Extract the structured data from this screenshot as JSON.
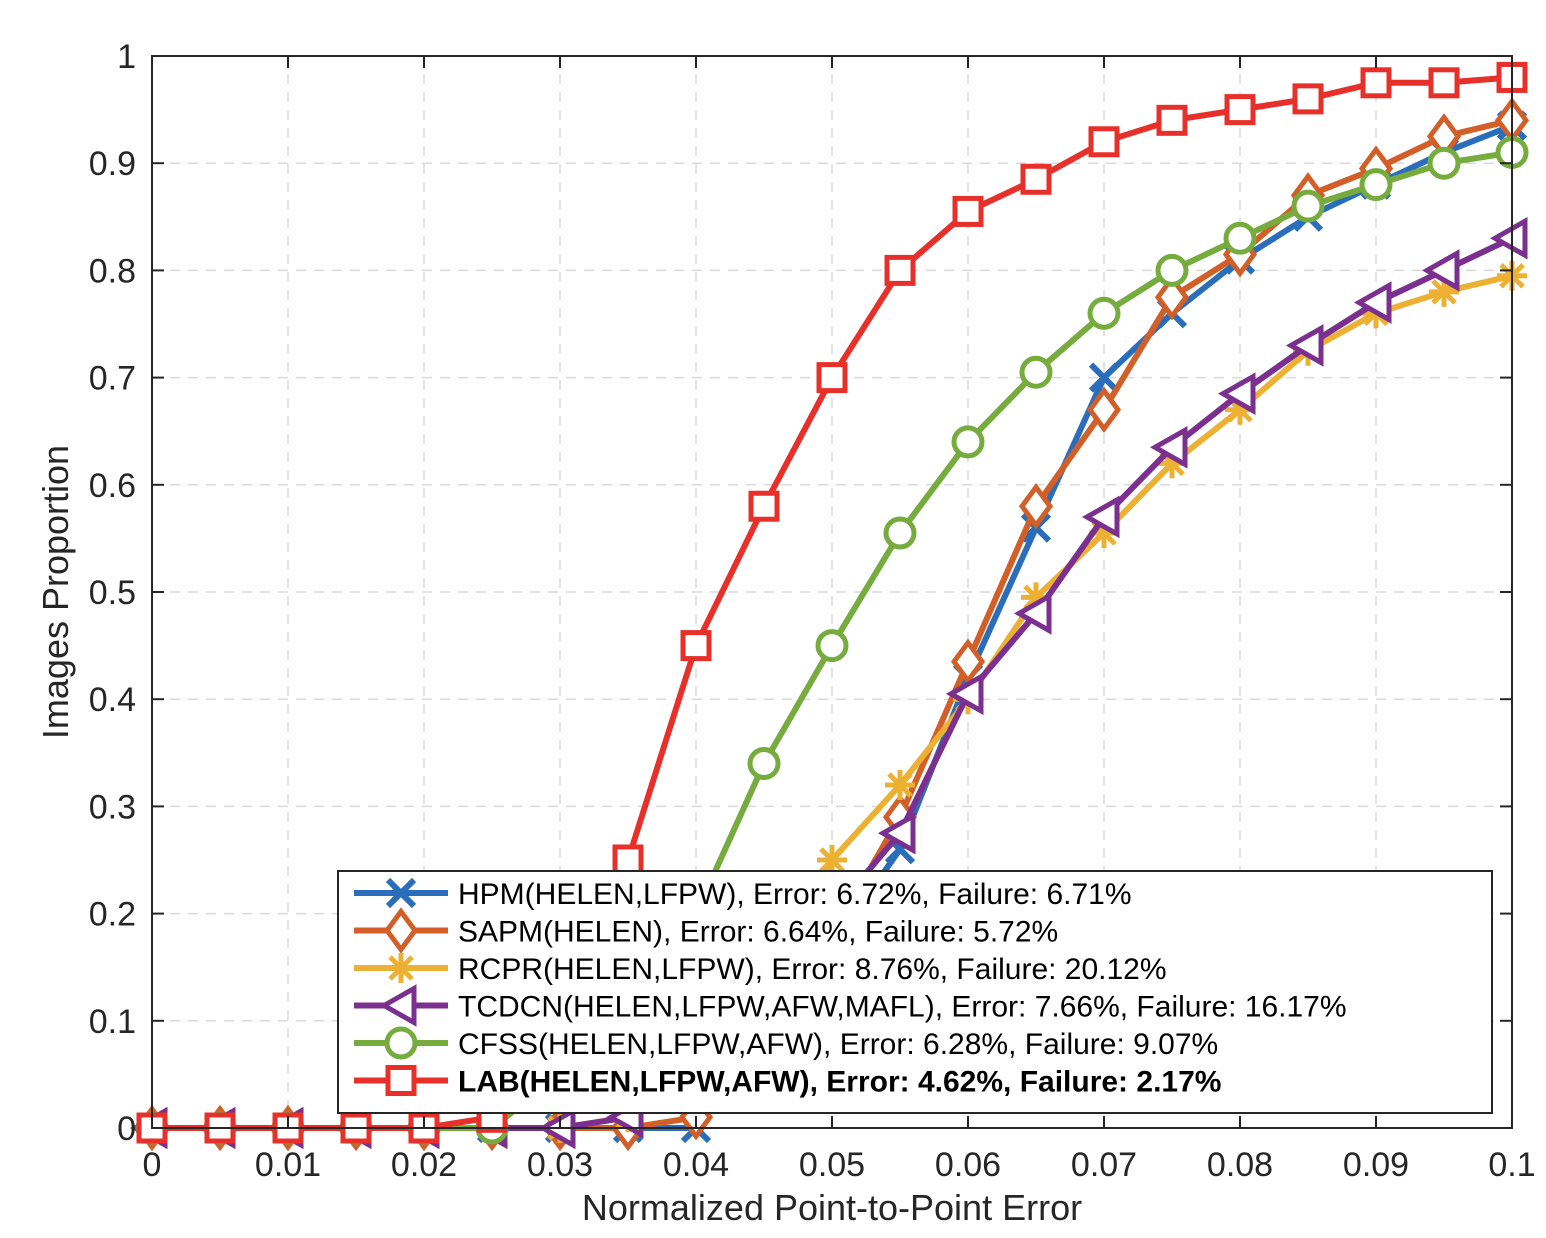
{
  "chart_data": {
    "type": "line",
    "xlabel": "Normalized Point-to-Point Error",
    "ylabel": "Images Proportion",
    "xlim": [
      0,
      0.1
    ],
    "ylim": [
      0,
      1
    ],
    "xticks": [
      "0",
      "0.01",
      "0.02",
      "0.03",
      "0.04",
      "0.05",
      "0.06",
      "0.07",
      "0.08",
      "0.09",
      "0.1"
    ],
    "yticks": [
      "0",
      "0.1",
      "0.2",
      "0.3",
      "0.4",
      "0.5",
      "0.6",
      "0.7",
      "0.8",
      "0.9",
      "1"
    ],
    "grid": true,
    "legend_position": "bottom-right",
    "x": [
      0,
      0.005,
      0.01,
      0.015,
      0.02,
      0.025,
      0.03,
      0.035,
      0.04,
      0.045,
      0.05,
      0.055,
      0.06,
      0.065,
      0.07,
      0.075,
      0.08,
      0.085,
      0.09,
      0.095,
      0.1
    ],
    "series": [
      {
        "name": "HPM(HELEN,LFPW), Error: 6.72%, Failure: 6.71%",
        "color": "#2a6ebb",
        "marker": "x",
        "bold": false,
        "values": [
          0,
          0,
          0,
          0,
          0,
          0,
          0,
          0,
          0,
          0.08,
          0.17,
          0.26,
          0.42,
          0.56,
          0.7,
          0.76,
          0.81,
          0.85,
          0.88,
          0.91,
          0.935
        ]
      },
      {
        "name": "SAPM(HELEN), Error: 6.64%, Failure: 5.72%",
        "color": "#d35f28",
        "marker": "diamond",
        "bold": false,
        "values": [
          0,
          0,
          0,
          0,
          0,
          0,
          0,
          0,
          0.01,
          0.08,
          0.18,
          0.29,
          0.435,
          0.58,
          0.67,
          0.775,
          0.815,
          0.87,
          0.895,
          0.925,
          0.94
        ]
      },
      {
        "name": "RCPR(HELEN,LFPW), Error: 8.76%, Failure: 20.12%",
        "color": "#ecb133",
        "marker": "asterisk",
        "bold": false,
        "values": [
          0,
          0,
          0,
          0,
          0,
          0,
          0,
          0.01,
          0.04,
          0.13,
          0.25,
          0.32,
          0.4,
          0.495,
          0.555,
          0.62,
          0.67,
          0.725,
          0.76,
          0.78,
          0.795
        ]
      },
      {
        "name": "TCDCN(HELEN,LFPW,AFW,MAFL), Error: 7.66%, Failure: 16.17%",
        "color": "#7b2f8e",
        "marker": "triangle-left",
        "bold": false,
        "values": [
          0,
          0,
          0,
          0,
          0,
          0,
          0,
          0.01,
          0.05,
          0.12,
          0.2,
          0.275,
          0.405,
          0.48,
          0.57,
          0.635,
          0.685,
          0.73,
          0.77,
          0.8,
          0.83
        ]
      },
      {
        "name": "CFSS(HELEN,LFPW,AFW), Error: 6.28%, Failure: 9.07%",
        "color": "#76ab3e",
        "marker": "circle",
        "bold": false,
        "values": [
          0,
          0,
          0,
          0,
          0,
          0,
          0.05,
          0.12,
          0.2,
          0.34,
          0.45,
          0.555,
          0.64,
          0.705,
          0.76,
          0.8,
          0.83,
          0.86,
          0.88,
          0.9,
          0.91
        ]
      },
      {
        "name": "LAB(HELEN,LFPW,AFW), Error: 4.62%, Failure: 2.17%",
        "color": "#e8302a",
        "marker": "square",
        "bold": true,
        "values": [
          0,
          0,
          0,
          0,
          0,
          0.01,
          0.08,
          0.25,
          0.45,
          0.58,
          0.7,
          0.8,
          0.855,
          0.885,
          0.92,
          0.94,
          0.95,
          0.96,
          0.975,
          0.975,
          0.98
        ]
      }
    ]
  }
}
